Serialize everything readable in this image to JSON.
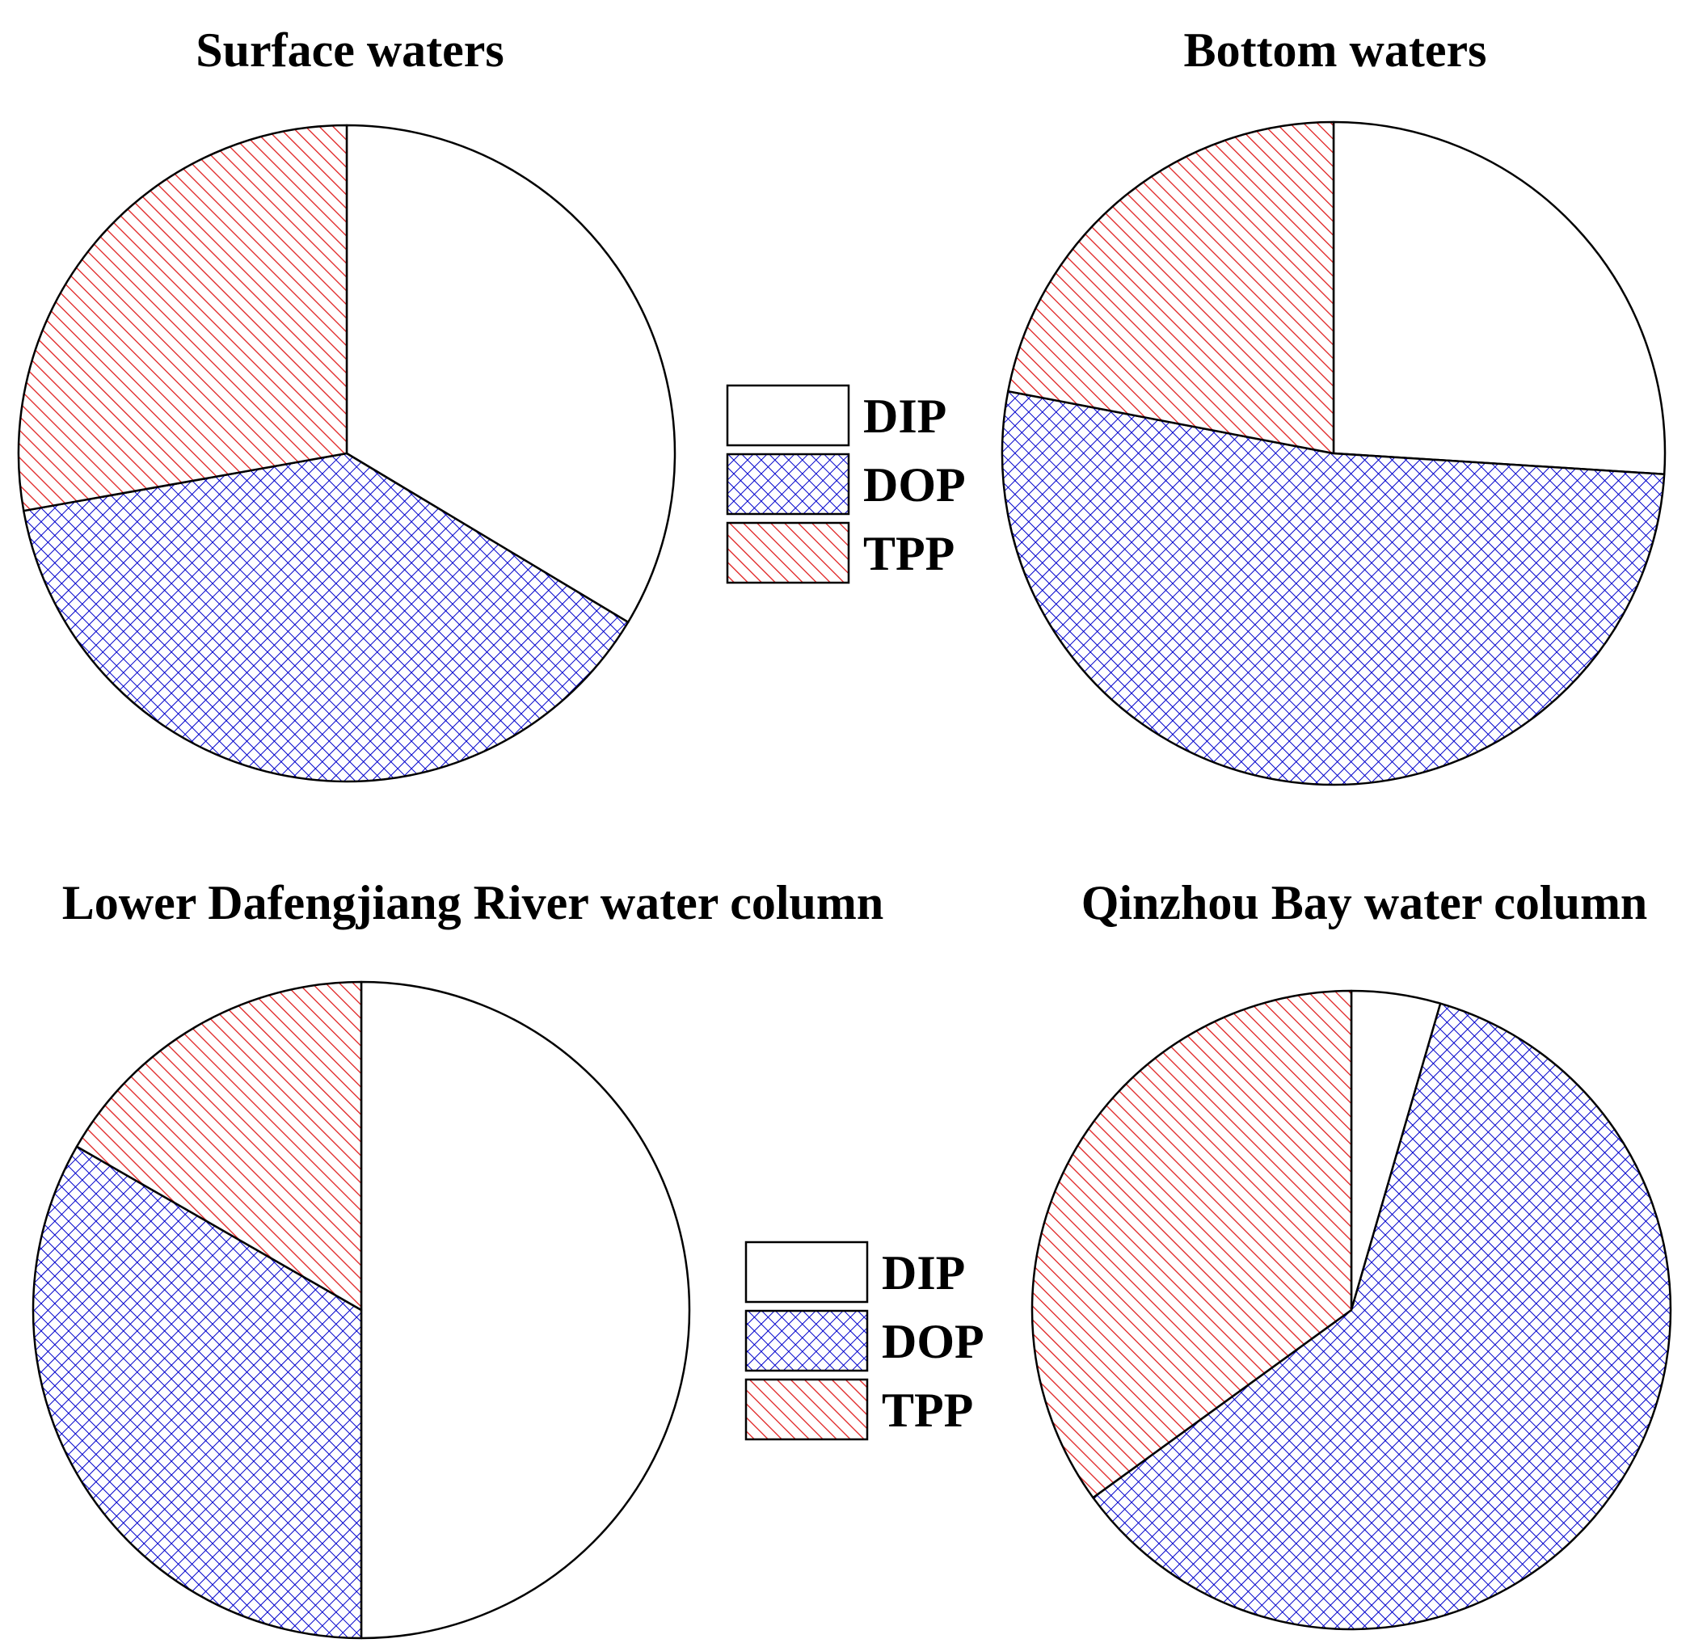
{
  "legend": [
    {
      "label": "DIP",
      "pattern": "none",
      "color": "#ffffff"
    },
    {
      "label": "DOP",
      "pattern": "crosshatch",
      "color": "#0000cc"
    },
    {
      "label": "TPP",
      "pattern": "diagonal",
      "color": "#e02020"
    }
  ],
  "chart_data": [
    {
      "type": "pie",
      "title": "Surface waters",
      "categories": [
        "DIP",
        "DOP",
        "TPP"
      ],
      "values": [
        33.6,
        38.6,
        27.8
      ],
      "start": "12 o'clock",
      "direction": "clockwise"
    },
    {
      "type": "pie",
      "title": "Bottom waters",
      "categories": [
        "DIP",
        "DOP",
        "TPP"
      ],
      "values": [
        26.0,
        52.0,
        22.0
      ],
      "start": "12 o'clock",
      "direction": "clockwise"
    },
    {
      "type": "pie",
      "title": "Lower Dafengjiang River water column",
      "categories": [
        "DIP",
        "DOP",
        "TPP"
      ],
      "values": [
        50.0,
        33.3,
        16.7
      ],
      "start": "12 o'clock",
      "direction": "clockwise"
    },
    {
      "type": "pie",
      "title": "Qinzhou Bay water column",
      "categories": [
        "DIP",
        "DOP",
        "TPP"
      ],
      "values": [
        4.5,
        60.5,
        35.0
      ],
      "start": "12 o'clock",
      "direction": "clockwise"
    }
  ]
}
